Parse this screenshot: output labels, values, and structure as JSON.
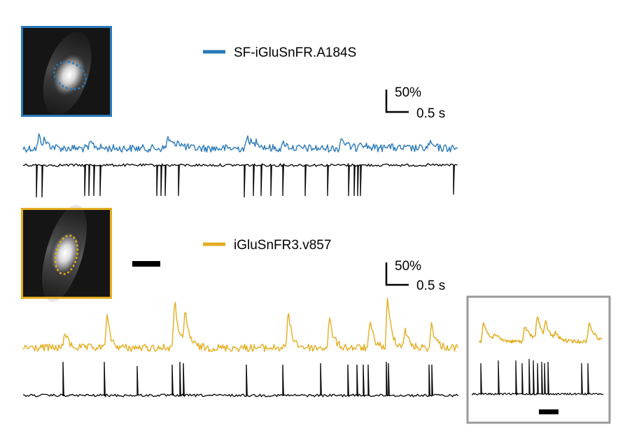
{
  "panels": [
    {
      "id": "top",
      "sensor_name": "SF-iGluSnFR.A184S",
      "color": "#2a79b8",
      "scale_bar": {
        "amplitude_label": "50%",
        "time_label": "0.5 s"
      }
    },
    {
      "id": "bottom",
      "sensor_name": "iGluSnFR3.v857",
      "color": "#e3ad20",
      "scale_bar": {
        "amplitude_label": "50%",
        "time_label": "0.5 s"
      }
    }
  ],
  "colors": {
    "ephys_trace": "#000000",
    "inset_frame": "#9a9a9a",
    "image_background": "#151515"
  }
}
